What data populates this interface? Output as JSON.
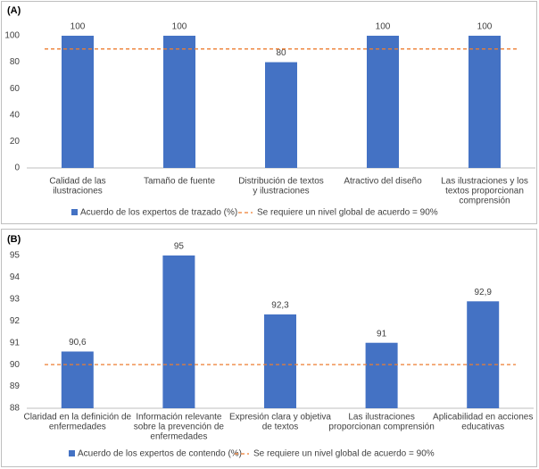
{
  "chart_data": [
    {
      "type": "bar",
      "panel_label": "(A)",
      "categories": [
        [
          "Calidad de las",
          "ilustraciones"
        ],
        [
          "Tamaño de fuente"
        ],
        [
          "Distribución de textos",
          "y ilustraciones"
        ],
        [
          "Atractivo del diseño"
        ],
        [
          "Las ilustraciones y los",
          "textos proporcionan",
          "comprensión"
        ]
      ],
      "series": [
        {
          "name": "Acuerdo de los expertos de trazado (%)",
          "color": "#4472c4",
          "values": [
            100,
            100,
            80,
            100,
            100
          ]
        }
      ],
      "reference": {
        "name": "Se requiere un nivel global de acuerdo = 90%",
        "value": 90,
        "color": "#ed7d31"
      },
      "ylim": [
        0,
        100
      ],
      "yticks": [
        0,
        20,
        40,
        60,
        80,
        100
      ],
      "grid": false
    },
    {
      "type": "bar",
      "panel_label": "(B)",
      "categories": [
        [
          "Claridad en la definición de",
          "enfermedades"
        ],
        [
          "Información relevante",
          "sobre la prevención de",
          "enfermedades"
        ],
        [
          "Expresión clara y objetiva",
          "de textos"
        ],
        [
          "Las ilustraciones",
          "proporcionan comprensión"
        ],
        [
          "Aplicabilidad en acciones",
          "educativas"
        ]
      ],
      "series": [
        {
          "name": "Acuerdo de los expertos de contendo (%)",
          "color": "#4472c4",
          "values": [
            90.6,
            95,
            92.3,
            91,
            92.9
          ],
          "value_labels": [
            "90,6",
            "95",
            "92,3",
            "91",
            "92,9"
          ]
        }
      ],
      "reference": {
        "name": "Se requiere un nivel global de acuerdo = 90%",
        "value": 90,
        "color": "#ed7d31"
      },
      "ylim": [
        88,
        95
      ],
      "yticks": [
        88,
        89,
        90,
        91,
        92,
        93,
        94,
        95
      ],
      "grid": false
    }
  ]
}
